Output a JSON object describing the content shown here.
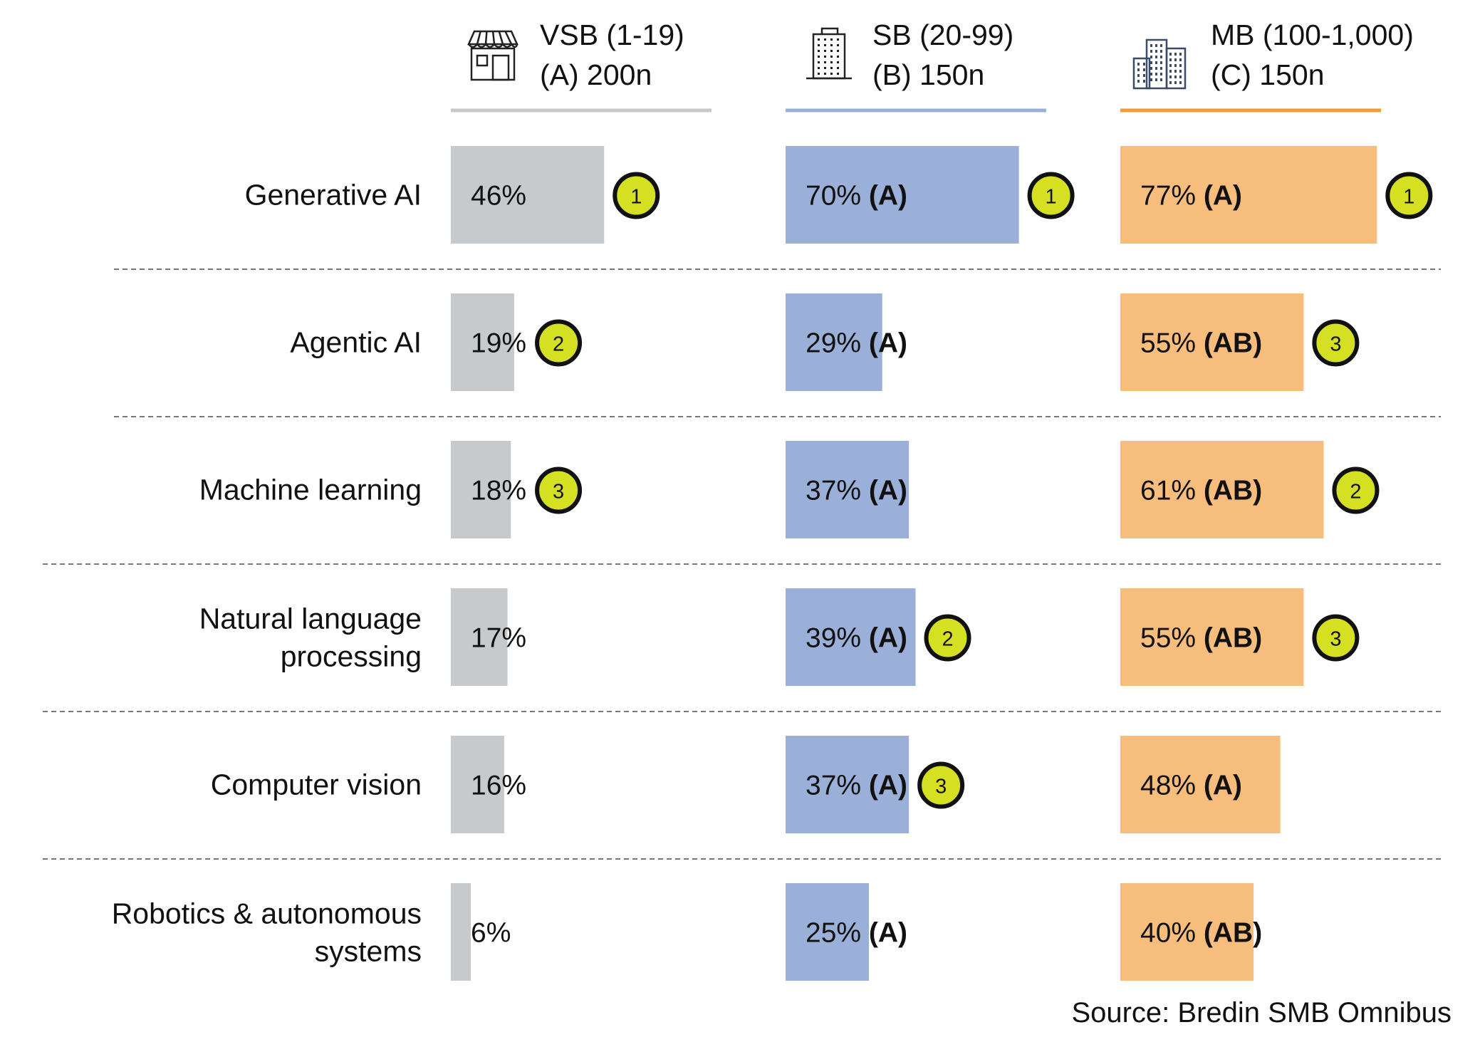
{
  "chart_data": {
    "type": "bar",
    "categories": [
      "Generative AI",
      "Agentic AI",
      "Machine learning",
      "Natural language processing",
      "Computer vision",
      "Robotics & autonomous systems"
    ],
    "category_lines": [
      [
        "Generative AI"
      ],
      [
        "Agentic AI"
      ],
      [
        "Machine learning"
      ],
      [
        "Natural language",
        "processing"
      ],
      [
        "Computer vision"
      ],
      [
        "Robotics & autonomous",
        "systems"
      ]
    ],
    "series": [
      {
        "key": "A",
        "name": "VSB (1-19)",
        "sample": "(A) 200n",
        "icon": "storefront-icon",
        "color": "#c7cacc",
        "line_color": "#c7cacc",
        "values": [
          46,
          19,
          18,
          17,
          16,
          6
        ],
        "labels": [
          "46%",
          "19%",
          "18%",
          "17%",
          "16%",
          "6%"
        ],
        "sig": [
          "",
          "",
          "",
          "",
          "",
          ""
        ],
        "rank": [
          "1",
          "2",
          "3",
          "",
          "",
          ""
        ]
      },
      {
        "key": "B",
        "name": "SB (20-99)",
        "sample": "(B) 150n",
        "icon": "office-building-icon",
        "color": "#9ab0d8",
        "line_color": "#9ab0d8",
        "values": [
          70,
          29,
          37,
          39,
          37,
          25
        ],
        "labels": [
          "70%",
          "29%",
          "37%",
          "39%",
          "37%",
          "25%"
        ],
        "sig": [
          "(A)",
          "(A)",
          "(A)",
          "(A)",
          "(A)",
          "(A)"
        ],
        "rank": [
          "1",
          "",
          "",
          "2",
          "3",
          ""
        ]
      },
      {
        "key": "C",
        "name": "MB (100-1,000)",
        "sample": "(C) 150n",
        "icon": "city-buildings-icon",
        "color": "#f6bd7d",
        "line_color": "#ee9d3a",
        "values": [
          77,
          55,
          61,
          55,
          48,
          40
        ],
        "labels": [
          "77%",
          "55%",
          "61%",
          "55%",
          "48%",
          "40%"
        ],
        "sig": [
          "(A)",
          "(AB)",
          "(AB)",
          "(AB)",
          "(A)",
          "(AB)"
        ],
        "rank": [
          "1",
          "3",
          "2",
          "3",
          "",
          ""
        ]
      }
    ],
    "rank_badge_color": "#d4e021",
    "xlim": [
      0,
      100
    ],
    "source": "Source: Bredin SMB Omnibus"
  }
}
